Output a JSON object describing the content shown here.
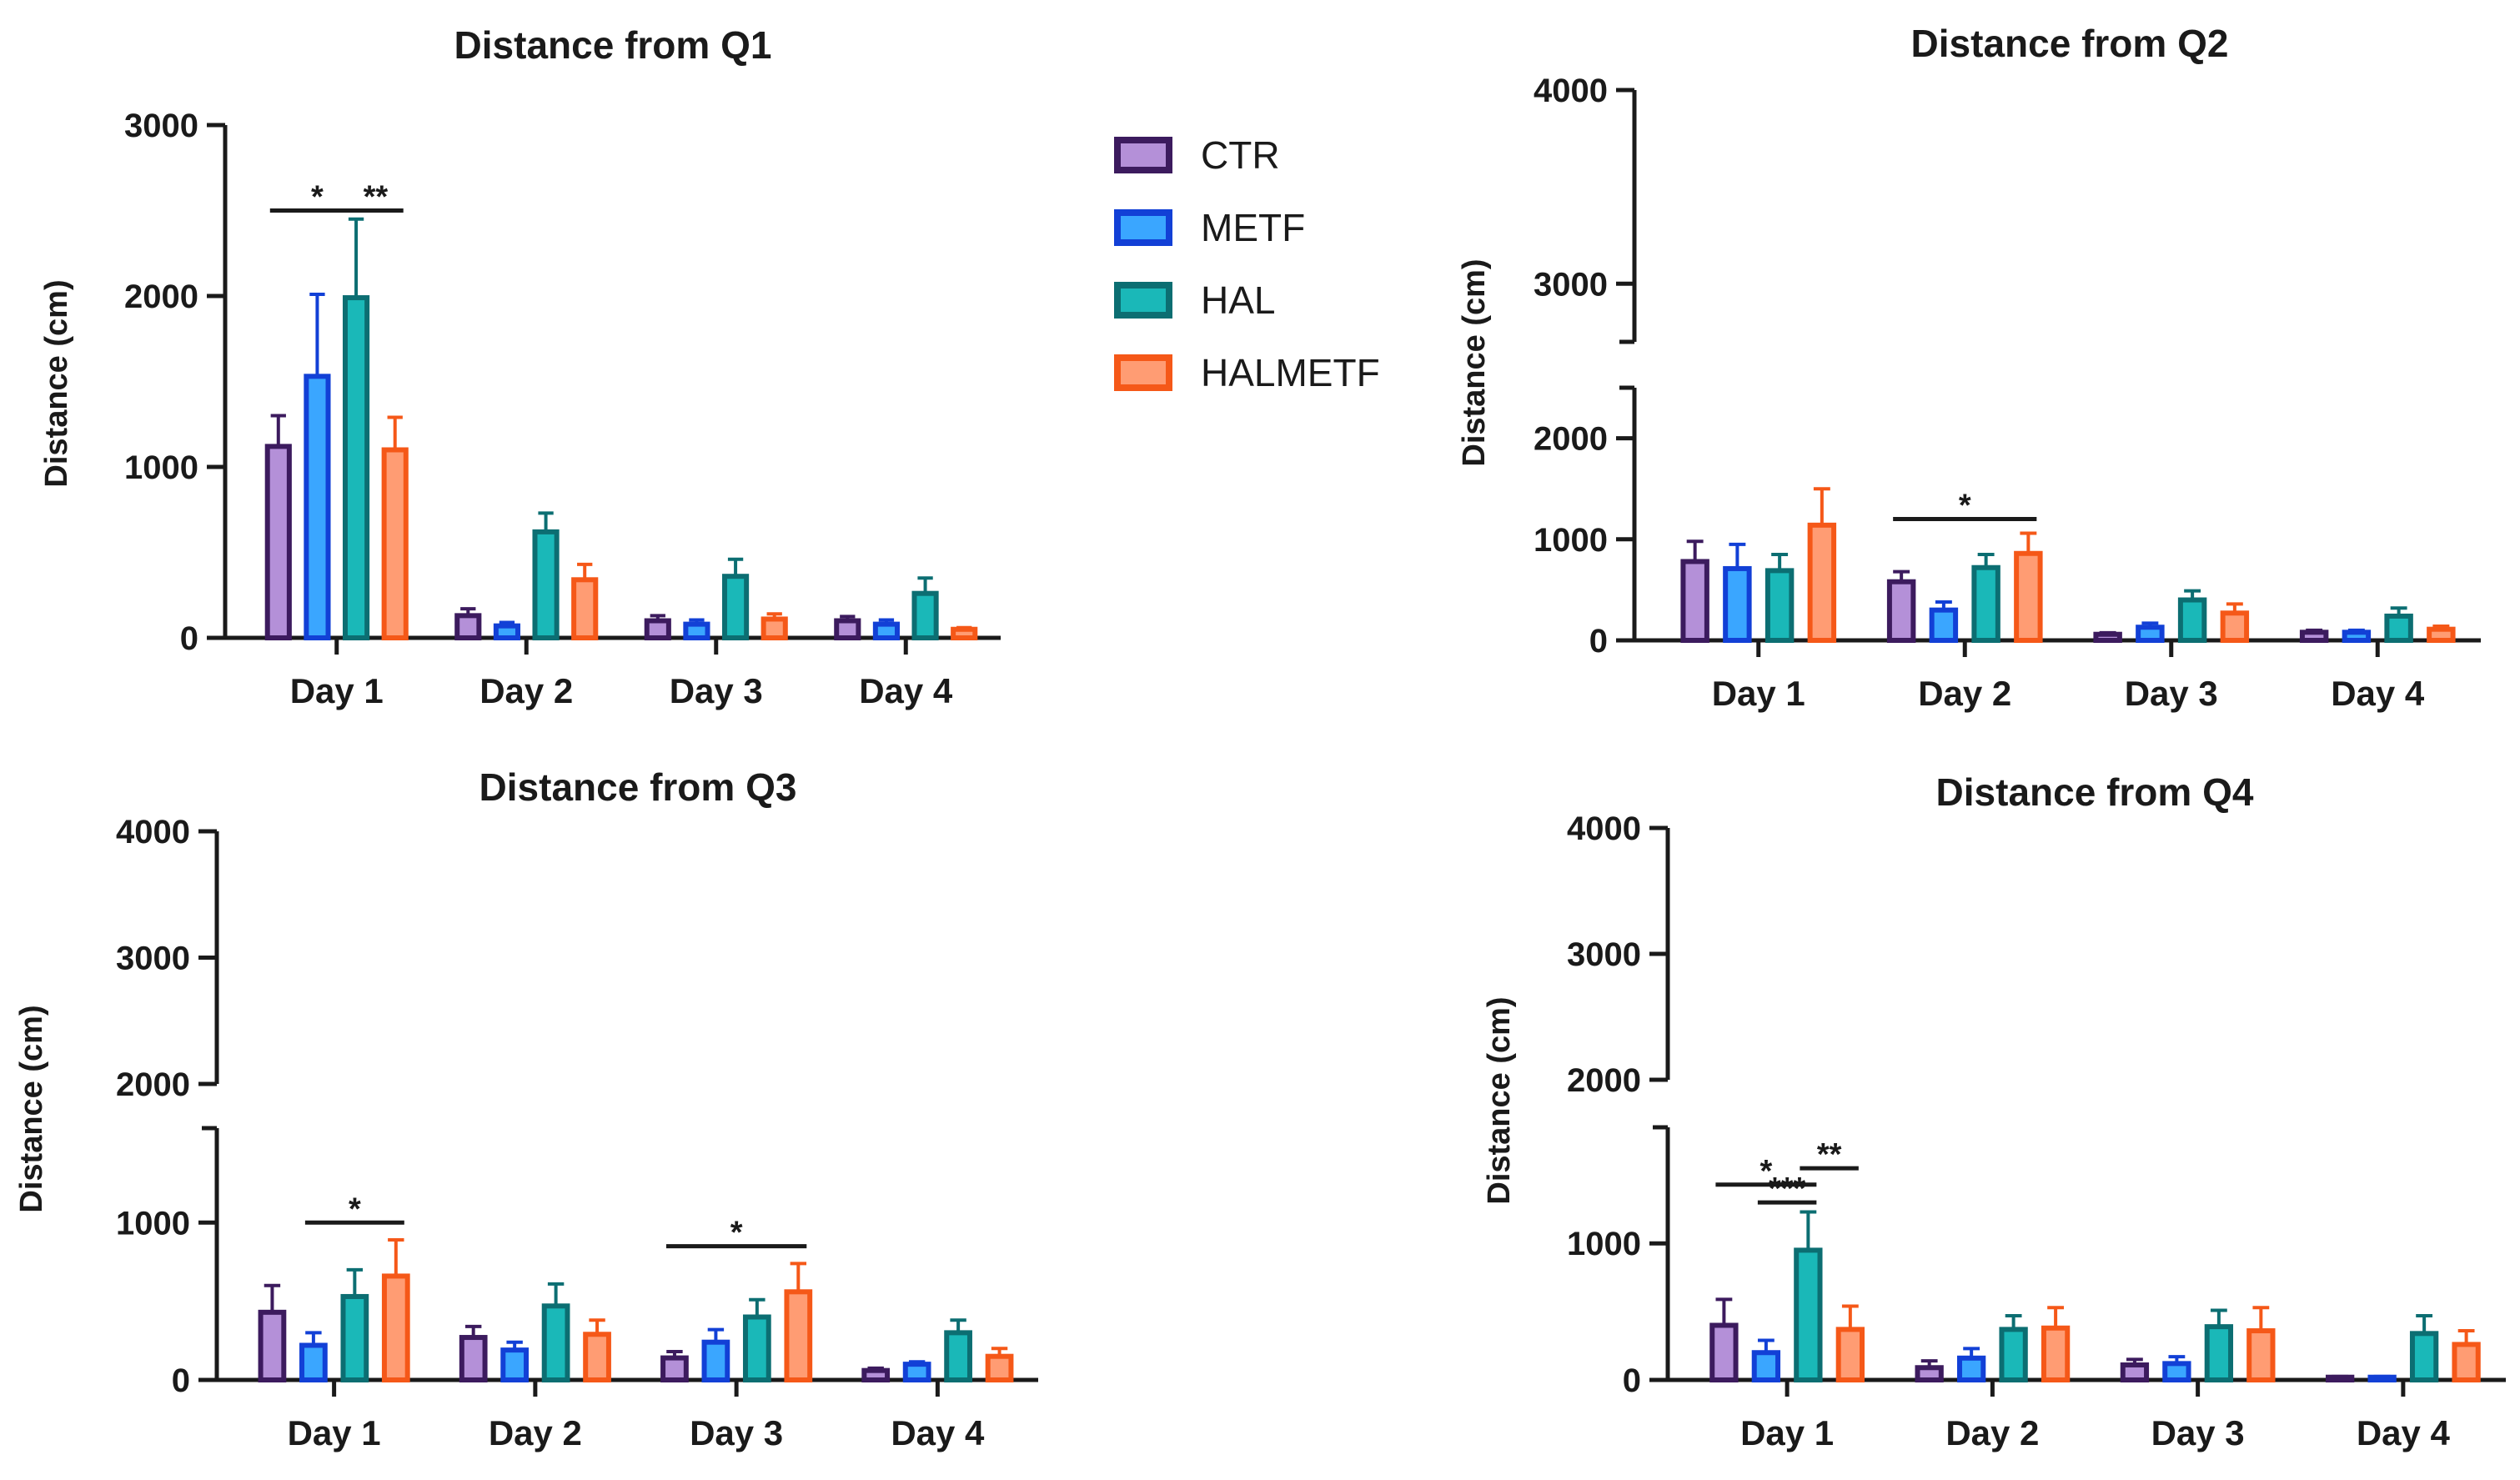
{
  "legend": [
    {
      "name": "CTR",
      "fill": "#b490d8",
      "stroke": "#3c1b5e"
    },
    {
      "name": "METF",
      "fill": "#3aa6ff",
      "stroke": "#1240d6"
    },
    {
      "name": "HAL",
      "fill": "#1ab8b8",
      "stroke": "#0c6e72"
    },
    {
      "name": "HALMETF",
      "fill": "#ff9c73",
      "stroke": "#f55818"
    }
  ],
  "chart_data": [
    {
      "type": "bar",
      "title": "Distance from Q1",
      "xlabel": "",
      "ylabel": "Distance (cm)",
      "categories": [
        "Day 1",
        "Day 2",
        "Day 3",
        "Day 4"
      ],
      "ylim": [
        0,
        3000
      ],
      "yticks": [
        "0",
        "1000",
        "2000",
        "3000"
      ],
      "series": [
        {
          "name": "CTR",
          "values": [
            1120,
            130,
            100,
            100
          ],
          "errors": [
            180,
            40,
            30,
            25
          ]
        },
        {
          "name": "METF",
          "values": [
            1530,
            70,
            80,
            80
          ],
          "errors": [
            480,
            20,
            25,
            25
          ]
        },
        {
          "name": "HAL",
          "values": [
            1990,
            620,
            360,
            260
          ],
          "errors": [
            460,
            110,
            100,
            90
          ]
        },
        {
          "name": "HALMETF",
          "values": [
            1100,
            340,
            110,
            50
          ],
          "errors": [
            190,
            90,
            30,
            10
          ]
        }
      ],
      "significance": [
        {
          "label": "*",
          "from": "Day 1:CTR",
          "to": "Day 1:HAL",
          "y": 2500
        },
        {
          "label": "**",
          "from": "Day 1:HAL",
          "to": "Day 1:HALMETF",
          "y": 2500
        }
      ]
    },
    {
      "type": "bar",
      "title": "Distance from Q2",
      "xlabel": "",
      "ylabel": "Distance (cm)",
      "categories": [
        "Day 1",
        "Day 2",
        "Day 3",
        "Day 4"
      ],
      "ylim": [
        0,
        4000
      ],
      "axis_break": [
        2500,
        2700
      ],
      "yticks": [
        "0",
        "1000",
        "2000",
        "3000",
        "4000"
      ],
      "series": [
        {
          "name": "CTR",
          "values": [
            780,
            580,
            60,
            80
          ],
          "errors": [
            200,
            100,
            15,
            20
          ]
        },
        {
          "name": "METF",
          "values": [
            710,
            300,
            130,
            80
          ],
          "errors": [
            240,
            80,
            40,
            20
          ]
        },
        {
          "name": "HAL",
          "values": [
            690,
            720,
            400,
            240
          ],
          "errors": [
            160,
            130,
            90,
            80
          ]
        },
        {
          "name": "HALMETF",
          "values": [
            1140,
            860,
            270,
            110
          ],
          "errors": [
            360,
            200,
            90,
            30
          ]
        }
      ],
      "significance": [
        {
          "label": "*",
          "from": "Day 2:CTR",
          "to": "Day 2:HALMETF",
          "y": 1200
        }
      ]
    },
    {
      "type": "bar",
      "title": "Distance from Q3",
      "xlabel": "",
      "ylabel": "Distance (cm)",
      "categories": [
        "Day 1",
        "Day 2",
        "Day 3",
        "Day 4"
      ],
      "ylim": [
        0,
        4000
      ],
      "axis_break": [
        1600,
        2000
      ],
      "yticks": [
        "0",
        "1000",
        "2000",
        "3000",
        "4000"
      ],
      "series": [
        {
          "name": "CTR",
          "values": [
            430,
            270,
            140,
            60
          ],
          "errors": [
            170,
            70,
            40,
            15
          ]
        },
        {
          "name": "METF",
          "values": [
            220,
            190,
            240,
            100
          ],
          "errors": [
            80,
            50,
            80,
            15
          ]
        },
        {
          "name": "HAL",
          "values": [
            530,
            470,
            400,
            300
          ],
          "errors": [
            170,
            140,
            110,
            80
          ]
        },
        {
          "name": "HALMETF",
          "values": [
            660,
            290,
            560,
            150
          ],
          "errors": [
            230,
            90,
            180,
            50
          ]
        }
      ],
      "significance": [
        {
          "label": "*",
          "from": "Day 1:METF",
          "to": "Day 1:HALMETF",
          "y": 1000
        },
        {
          "label": "*",
          "from": "Day 3:CTR",
          "to": "Day 3:HALMETF",
          "y": 850
        }
      ]
    },
    {
      "type": "bar",
      "title": "Distance from Q4",
      "xlabel": "",
      "ylabel": "Distance (cm)",
      "categories": [
        "Day 1",
        "Day 2",
        "Day 3",
        "Day 4"
      ],
      "ylim": [
        0,
        4000
      ],
      "axis_break": [
        1850,
        2000
      ],
      "yticks": [
        "0",
        "1000",
        "2000",
        "3000",
        "4000"
      ],
      "series": [
        {
          "name": "CTR",
          "values": [
            400,
            90,
            110,
            20
          ],
          "errors": [
            190,
            50,
            40,
            5
          ]
        },
        {
          "name": "METF",
          "values": [
            200,
            160,
            120,
            20
          ],
          "errors": [
            90,
            70,
            50,
            5
          ]
        },
        {
          "name": "HAL",
          "values": [
            950,
            370,
            390,
            340
          ],
          "errors": [
            280,
            100,
            120,
            130
          ]
        },
        {
          "name": "HALMETF",
          "values": [
            370,
            380,
            360,
            260
          ],
          "errors": [
            170,
            150,
            170,
            100
          ]
        }
      ],
      "significance": [
        {
          "label": "*",
          "from": "Day 1:CTR",
          "to": "Day 1:HAL",
          "y": 1430
        },
        {
          "label": "***",
          "from": "Day 1:METF",
          "to": "Day 1:HAL",
          "y": 1300
        },
        {
          "label": "**",
          "from": "Day 1:HAL",
          "to": "Day 1:HALMETF",
          "y": 1550
        }
      ]
    }
  ]
}
